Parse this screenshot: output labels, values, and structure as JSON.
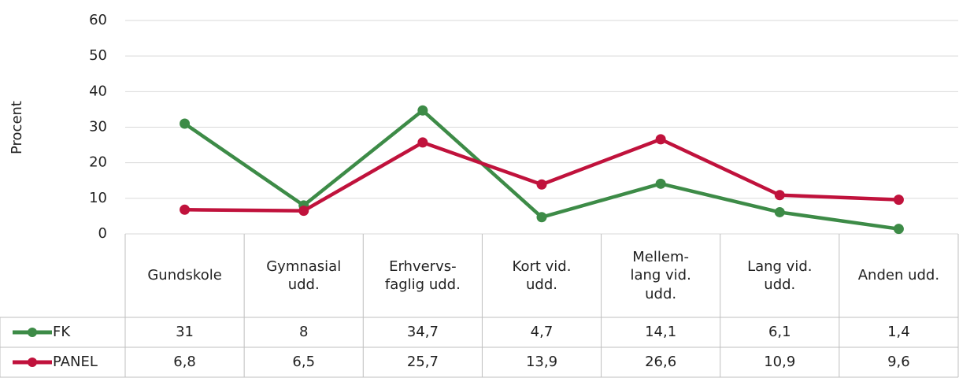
{
  "chart_data": {
    "type": "line",
    "y_label": "Procent",
    "categories": [
      "Gundskole",
      "Gymnasial\nudd.",
      "Erhvervs-\nfaglig udd.",
      "Kort vid.\nudd.",
      "Mellem-\nlang vid.\nudd.",
      "Lang vid.\nudd.",
      "Anden udd."
    ],
    "series": [
      {
        "name": "FK",
        "color": "#3d8b47",
        "values": [
          31,
          8,
          34.7,
          4.7,
          14.1,
          6.1,
          1.4
        ],
        "value_labels": [
          "31",
          "8",
          "34,7",
          "4,7",
          "14,1",
          "6,1",
          "1,4"
        ]
      },
      {
        "name": "PANEL",
        "color": "#c0123c",
        "values": [
          6.8,
          6.5,
          25.7,
          13.9,
          26.6,
          10.9,
          9.6
        ],
        "value_labels": [
          "6,8",
          "6,5",
          "25,7",
          "13,9",
          "26,6",
          "10,9",
          "9,6"
        ]
      }
    ],
    "ylim": [
      0,
      60
    ],
    "yticks": [
      0,
      10,
      20,
      30,
      40,
      50,
      60
    ],
    "grid": true
  }
}
